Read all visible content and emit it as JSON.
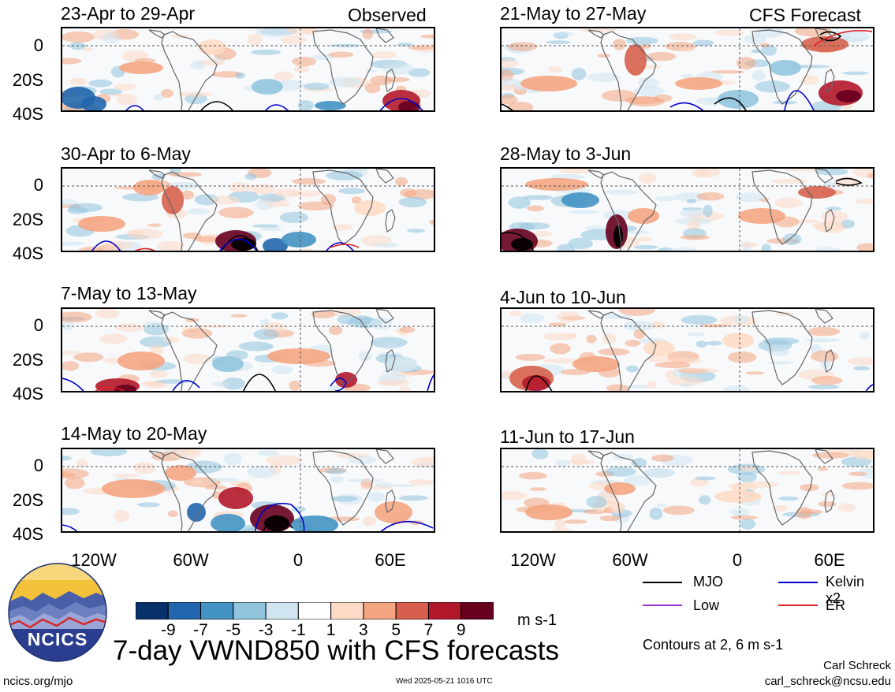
{
  "left_header": "Observed",
  "right_header": "CFS Forecast",
  "panels_left": [
    {
      "label": "23-Apr to 29-Apr"
    },
    {
      "label": "30-Apr to 6-May"
    },
    {
      "label": "7-May to 13-May"
    },
    {
      "label": "14-May to 20-May"
    }
  ],
  "panels_right": [
    {
      "label": "21-May to 27-May"
    },
    {
      "label": "28-May to 3-Jun"
    },
    {
      "label": "4-Jun to 10-Jun"
    },
    {
      "label": "11-Jun to 17-Jun"
    }
  ],
  "y_ticks": [
    "0",
    "20S",
    "40S"
  ],
  "x_ticks": [
    "120W",
    "60W",
    "0",
    "60E"
  ],
  "colorbar": {
    "labels": [
      "-9",
      "-7",
      "-5",
      "-3",
      "-1",
      "1",
      "3",
      "5",
      "7",
      "9"
    ],
    "colors": [
      "#08306b",
      "#2166ac",
      "#4393c3",
      "#92c5de",
      "#d1e5f0",
      "#ffffff",
      "#fddbc7",
      "#f4a582",
      "#d6604d",
      "#b2182b",
      "#67001f"
    ],
    "units": "m s-1"
  },
  "legend": {
    "mjo": "MJO",
    "kelvin": "Kelvin x2",
    "low": "Low",
    "er": "ER",
    "colors": {
      "mjo": "#000000",
      "kelvin": "#0000cc",
      "low": "#9933cc",
      "er": "#dd2222"
    }
  },
  "contours_note": "Contours at 2, 6 m s-1",
  "logo_text": "NCICS",
  "main_title": "7-day VWND850 with CFS forecasts",
  "author": "Carl Schreck",
  "email": "carl_schreck@ncsu.edu",
  "site": "ncics.org/mjo",
  "timestamp": "Wed 2025-05-21 1016 UTC"
}
